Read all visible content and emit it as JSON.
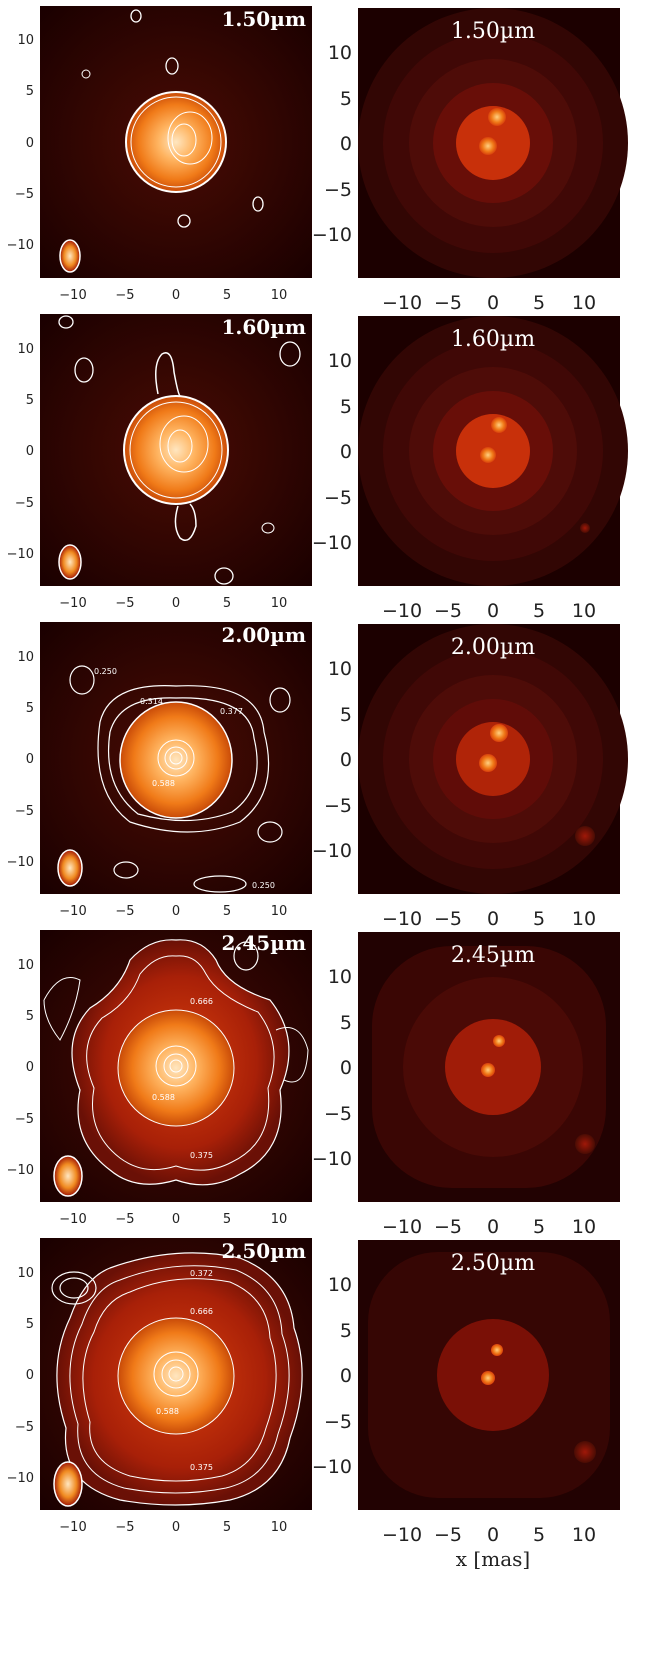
{
  "chart_data": [
    {
      "type": "heatmap",
      "panel": "observed",
      "title": "1.50µm",
      "x_ticks": [
        "-10",
        "-5",
        "0",
        "5",
        "10"
      ],
      "y_ticks": [
        "10",
        "5",
        "0",
        "-5",
        "-10"
      ],
      "contour_labels": []
    },
    {
      "type": "heatmap",
      "panel": "model",
      "title": "1.50µm",
      "x_ticks": [
        "-10",
        "-5",
        "0",
        "5",
        "10"
      ],
      "y_ticks": [
        "10",
        "5",
        "0",
        "-5",
        "-10"
      ]
    },
    {
      "type": "heatmap",
      "panel": "observed",
      "title": "1.60µm",
      "x_ticks": [
        "-10",
        "-5",
        "0",
        "5",
        "10"
      ],
      "y_ticks": [
        "10",
        "5",
        "0",
        "-5",
        "-10"
      ],
      "contour_labels": []
    },
    {
      "type": "heatmap",
      "panel": "model",
      "title": "1.60µm",
      "x_ticks": [
        "-10",
        "-5",
        "0",
        "5",
        "10"
      ],
      "y_ticks": [
        "10",
        "5",
        "0",
        "-5",
        "-10"
      ]
    },
    {
      "type": "heatmap",
      "panel": "observed",
      "title": "2.00µm",
      "x_ticks": [
        "-10",
        "-5",
        "0",
        "5",
        "10"
      ],
      "y_ticks": [
        "10",
        "5",
        "0",
        "-5",
        "-10"
      ],
      "contour_labels": [
        "0.250",
        "0.314",
        "0.377",
        "0.588",
        "0.250"
      ]
    },
    {
      "type": "heatmap",
      "panel": "model",
      "title": "2.00µm",
      "x_ticks": [
        "-10",
        "-5",
        "0",
        "5",
        "10"
      ],
      "y_ticks": [
        "10",
        "5",
        "0",
        "-5",
        "-10"
      ]
    },
    {
      "type": "heatmap",
      "panel": "observed",
      "title": "2.45µm",
      "x_ticks": [
        "-10",
        "-5",
        "0",
        "5",
        "10"
      ],
      "y_ticks": [
        "10",
        "5",
        "0",
        "-5",
        "-10"
      ],
      "contour_labels": [
        "0.666",
        "0.588",
        "0.375"
      ]
    },
    {
      "type": "heatmap",
      "panel": "model",
      "title": "2.45µm",
      "x_ticks": [
        "-10",
        "-5",
        "0",
        "5",
        "10"
      ],
      "y_ticks": [
        "10",
        "5",
        "0",
        "-5",
        "-10"
      ]
    },
    {
      "type": "heatmap",
      "panel": "observed",
      "title": "2.50µm",
      "x_ticks": [
        "-10",
        "-5",
        "0",
        "5",
        "10"
      ],
      "y_ticks": [
        "10",
        "5",
        "0",
        "-5",
        "-10"
      ],
      "contour_labels": [
        "0.372",
        "0.666",
        "0.588",
        "0.375"
      ]
    },
    {
      "type": "heatmap",
      "panel": "model",
      "title": "2.50µm",
      "x_ticks": [
        "-10",
        "-5",
        "0",
        "5",
        "10"
      ],
      "y_ticks": [
        "10",
        "5",
        "0",
        "-5",
        "-10"
      ],
      "xlabel": "x [mas]"
    }
  ],
  "colors": {
    "background": "#200000",
    "core": "#ffd9a8",
    "mid": "#f08a20",
    "outer": "#a01808",
    "model_bg": "#2a0404",
    "model_ring": "#5a0e06",
    "model_disk": "#c42a0a",
    "contour": "#ffffff"
  }
}
